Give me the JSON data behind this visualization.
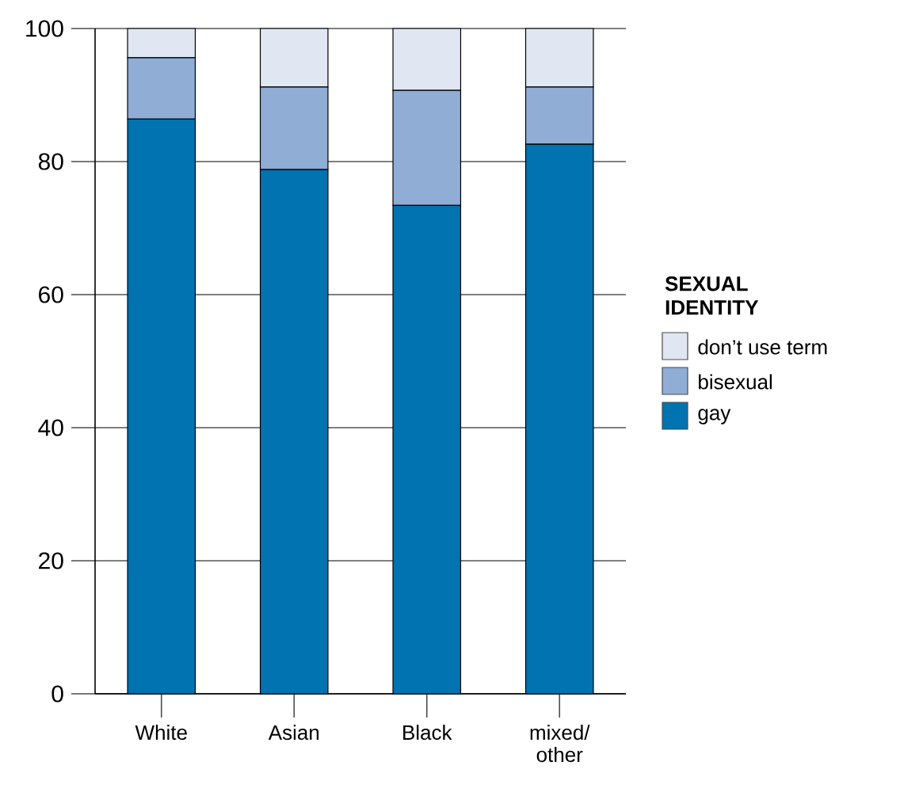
{
  "chart_data": {
    "type": "bar",
    "stacked": true,
    "categories": [
      "White",
      "Asian",
      "Black",
      "mixed/\nother"
    ],
    "series": [
      {
        "name": "gay",
        "color": "#0073b0",
        "values": [
          86.4,
          78.8,
          73.4,
          82.6
        ]
      },
      {
        "name": "bisexual",
        "color": "#8fadd5",
        "values": [
          9.2,
          12.4,
          17.3,
          8.6
        ]
      },
      {
        "name": "don’t use term",
        "color": "#e0e7f2",
        "values": [
          4.4,
          8.8,
          9.3,
          8.8
        ]
      }
    ],
    "legend_title": "SEXUAL IDENTITY",
    "legend": "right",
    "ylim": [
      0,
      100
    ],
    "yticks": [
      0,
      20,
      40,
      60,
      80,
      100
    ],
    "grid": "y"
  }
}
